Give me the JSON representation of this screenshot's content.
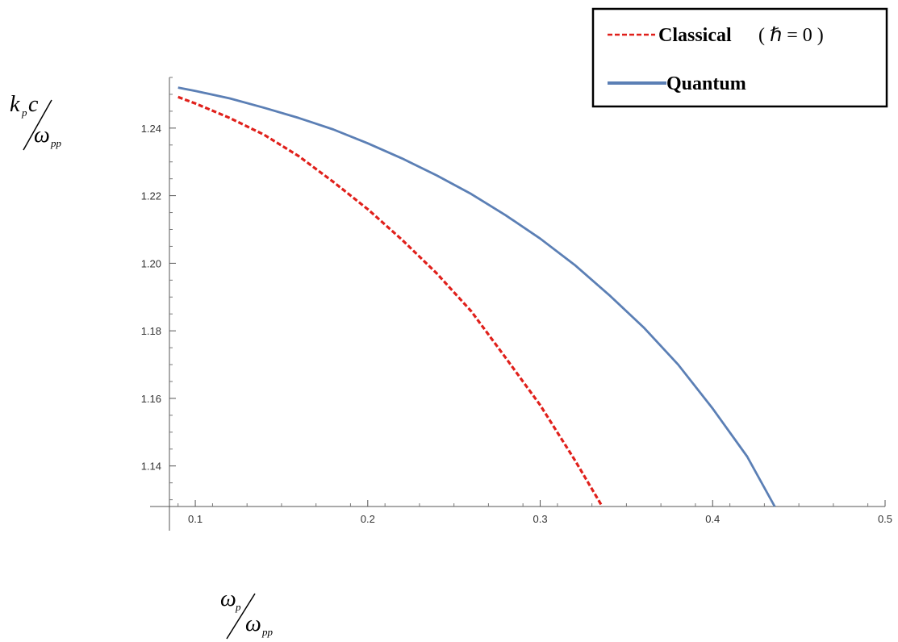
{
  "chart_data": {
    "type": "line",
    "xlim": [
      0.085,
      0.5
    ],
    "ylim": [
      1.128,
      1.255
    ],
    "x_ticks": [
      0.1,
      0.2,
      0.3,
      0.4,
      0.5
    ],
    "x_tick_labels": [
      "0.1",
      "0.2",
      "0.3",
      "0.4",
      "0.5"
    ],
    "y_ticks": [
      1.14,
      1.16,
      1.18,
      1.2,
      1.22,
      1.24
    ],
    "y_tick_labels": [
      "1.14",
      "1.16",
      "1.18",
      "1.20",
      "1.22",
      "1.24"
    ],
    "xlabel": {
      "numerator": "ω",
      "numerator_sub": "p",
      "denominator": "ω",
      "denominator_sub": "pp"
    },
    "ylabel": {
      "numerator": "k",
      "numerator_sub": "p",
      "numerator_suffix": "c",
      "denominator": "ω",
      "denominator_sub": "pp"
    },
    "grid": false,
    "legend_position": "top-right",
    "series": [
      {
        "name": "Classical ( ℏ = 0 )",
        "legend_label": "Classical",
        "legend_math": "( ℏ = 0 )",
        "style": "dashed",
        "color": "#e0201b",
        "x": [
          0.09,
          0.1,
          0.12,
          0.14,
          0.16,
          0.18,
          0.2,
          0.22,
          0.24,
          0.26,
          0.28,
          0.3,
          0.32,
          0.336
        ],
        "y": [
          1.2492,
          1.2473,
          1.243,
          1.238,
          1.2317,
          1.2241,
          1.216,
          1.2069,
          1.197,
          1.1858,
          1.172,
          1.158,
          1.1418,
          1.128
        ]
      },
      {
        "name": "Quantum",
        "legend_label": "Quantum",
        "style": "solid",
        "color": "#5b7fb5",
        "x": [
          0.09,
          0.1,
          0.12,
          0.14,
          0.16,
          0.18,
          0.2,
          0.22,
          0.24,
          0.26,
          0.28,
          0.3,
          0.32,
          0.34,
          0.36,
          0.38,
          0.4,
          0.42,
          0.436
        ],
        "y": [
          1.252,
          1.251,
          1.2488,
          1.246,
          1.243,
          1.2396,
          1.2355,
          1.231,
          1.226,
          1.2205,
          1.2142,
          1.2073,
          1.1995,
          1.1906,
          1.181,
          1.17,
          1.157,
          1.1428,
          1.128
        ]
      }
    ]
  }
}
